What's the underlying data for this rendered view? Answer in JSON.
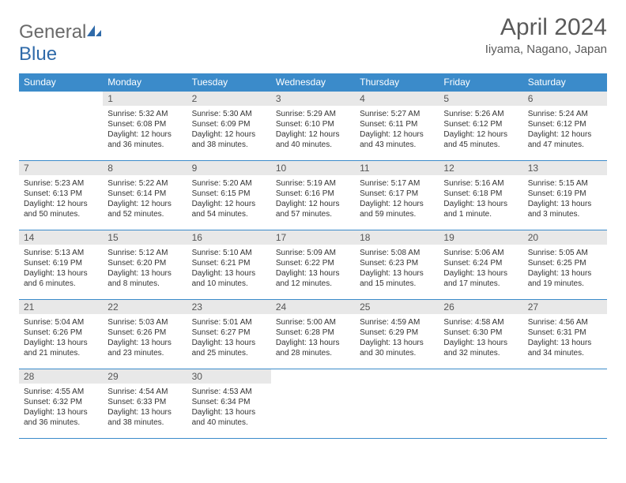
{
  "brand": {
    "part1": "General",
    "part2": "Blue"
  },
  "title": "April 2024",
  "location": "Iiyama, Nagano, Japan",
  "colors": {
    "header_bg": "#3b8bca",
    "header_text": "#ffffff",
    "daynum_bg": "#e8e8e8",
    "daynum_text": "#555555",
    "border": "#3b8bca",
    "title_text": "#5a5a5a"
  },
  "day_names": [
    "Sunday",
    "Monday",
    "Tuesday",
    "Wednesday",
    "Thursday",
    "Friday",
    "Saturday"
  ],
  "weeks": [
    [
      {
        "n": "",
        "sr": "",
        "ss": "",
        "dl": ""
      },
      {
        "n": "1",
        "sr": "Sunrise: 5:32 AM",
        "ss": "Sunset: 6:08 PM",
        "dl": "Daylight: 12 hours and 36 minutes."
      },
      {
        "n": "2",
        "sr": "Sunrise: 5:30 AM",
        "ss": "Sunset: 6:09 PM",
        "dl": "Daylight: 12 hours and 38 minutes."
      },
      {
        "n": "3",
        "sr": "Sunrise: 5:29 AM",
        "ss": "Sunset: 6:10 PM",
        "dl": "Daylight: 12 hours and 40 minutes."
      },
      {
        "n": "4",
        "sr": "Sunrise: 5:27 AM",
        "ss": "Sunset: 6:11 PM",
        "dl": "Daylight: 12 hours and 43 minutes."
      },
      {
        "n": "5",
        "sr": "Sunrise: 5:26 AM",
        "ss": "Sunset: 6:12 PM",
        "dl": "Daylight: 12 hours and 45 minutes."
      },
      {
        "n": "6",
        "sr": "Sunrise: 5:24 AM",
        "ss": "Sunset: 6:12 PM",
        "dl": "Daylight: 12 hours and 47 minutes."
      }
    ],
    [
      {
        "n": "7",
        "sr": "Sunrise: 5:23 AM",
        "ss": "Sunset: 6:13 PM",
        "dl": "Daylight: 12 hours and 50 minutes."
      },
      {
        "n": "8",
        "sr": "Sunrise: 5:22 AM",
        "ss": "Sunset: 6:14 PM",
        "dl": "Daylight: 12 hours and 52 minutes."
      },
      {
        "n": "9",
        "sr": "Sunrise: 5:20 AM",
        "ss": "Sunset: 6:15 PM",
        "dl": "Daylight: 12 hours and 54 minutes."
      },
      {
        "n": "10",
        "sr": "Sunrise: 5:19 AM",
        "ss": "Sunset: 6:16 PM",
        "dl": "Daylight: 12 hours and 57 minutes."
      },
      {
        "n": "11",
        "sr": "Sunrise: 5:17 AM",
        "ss": "Sunset: 6:17 PM",
        "dl": "Daylight: 12 hours and 59 minutes."
      },
      {
        "n": "12",
        "sr": "Sunrise: 5:16 AM",
        "ss": "Sunset: 6:18 PM",
        "dl": "Daylight: 13 hours and 1 minute."
      },
      {
        "n": "13",
        "sr": "Sunrise: 5:15 AM",
        "ss": "Sunset: 6:19 PM",
        "dl": "Daylight: 13 hours and 3 minutes."
      }
    ],
    [
      {
        "n": "14",
        "sr": "Sunrise: 5:13 AM",
        "ss": "Sunset: 6:19 PM",
        "dl": "Daylight: 13 hours and 6 minutes."
      },
      {
        "n": "15",
        "sr": "Sunrise: 5:12 AM",
        "ss": "Sunset: 6:20 PM",
        "dl": "Daylight: 13 hours and 8 minutes."
      },
      {
        "n": "16",
        "sr": "Sunrise: 5:10 AM",
        "ss": "Sunset: 6:21 PM",
        "dl": "Daylight: 13 hours and 10 minutes."
      },
      {
        "n": "17",
        "sr": "Sunrise: 5:09 AM",
        "ss": "Sunset: 6:22 PM",
        "dl": "Daylight: 13 hours and 12 minutes."
      },
      {
        "n": "18",
        "sr": "Sunrise: 5:08 AM",
        "ss": "Sunset: 6:23 PM",
        "dl": "Daylight: 13 hours and 15 minutes."
      },
      {
        "n": "19",
        "sr": "Sunrise: 5:06 AM",
        "ss": "Sunset: 6:24 PM",
        "dl": "Daylight: 13 hours and 17 minutes."
      },
      {
        "n": "20",
        "sr": "Sunrise: 5:05 AM",
        "ss": "Sunset: 6:25 PM",
        "dl": "Daylight: 13 hours and 19 minutes."
      }
    ],
    [
      {
        "n": "21",
        "sr": "Sunrise: 5:04 AM",
        "ss": "Sunset: 6:26 PM",
        "dl": "Daylight: 13 hours and 21 minutes."
      },
      {
        "n": "22",
        "sr": "Sunrise: 5:03 AM",
        "ss": "Sunset: 6:26 PM",
        "dl": "Daylight: 13 hours and 23 minutes."
      },
      {
        "n": "23",
        "sr": "Sunrise: 5:01 AM",
        "ss": "Sunset: 6:27 PM",
        "dl": "Daylight: 13 hours and 25 minutes."
      },
      {
        "n": "24",
        "sr": "Sunrise: 5:00 AM",
        "ss": "Sunset: 6:28 PM",
        "dl": "Daylight: 13 hours and 28 minutes."
      },
      {
        "n": "25",
        "sr": "Sunrise: 4:59 AM",
        "ss": "Sunset: 6:29 PM",
        "dl": "Daylight: 13 hours and 30 minutes."
      },
      {
        "n": "26",
        "sr": "Sunrise: 4:58 AM",
        "ss": "Sunset: 6:30 PM",
        "dl": "Daylight: 13 hours and 32 minutes."
      },
      {
        "n": "27",
        "sr": "Sunrise: 4:56 AM",
        "ss": "Sunset: 6:31 PM",
        "dl": "Daylight: 13 hours and 34 minutes."
      }
    ],
    [
      {
        "n": "28",
        "sr": "Sunrise: 4:55 AM",
        "ss": "Sunset: 6:32 PM",
        "dl": "Daylight: 13 hours and 36 minutes."
      },
      {
        "n": "29",
        "sr": "Sunrise: 4:54 AM",
        "ss": "Sunset: 6:33 PM",
        "dl": "Daylight: 13 hours and 38 minutes."
      },
      {
        "n": "30",
        "sr": "Sunrise: 4:53 AM",
        "ss": "Sunset: 6:34 PM",
        "dl": "Daylight: 13 hours and 40 minutes."
      },
      {
        "n": "",
        "sr": "",
        "ss": "",
        "dl": ""
      },
      {
        "n": "",
        "sr": "",
        "ss": "",
        "dl": ""
      },
      {
        "n": "",
        "sr": "",
        "ss": "",
        "dl": ""
      },
      {
        "n": "",
        "sr": "",
        "ss": "",
        "dl": ""
      }
    ]
  ]
}
